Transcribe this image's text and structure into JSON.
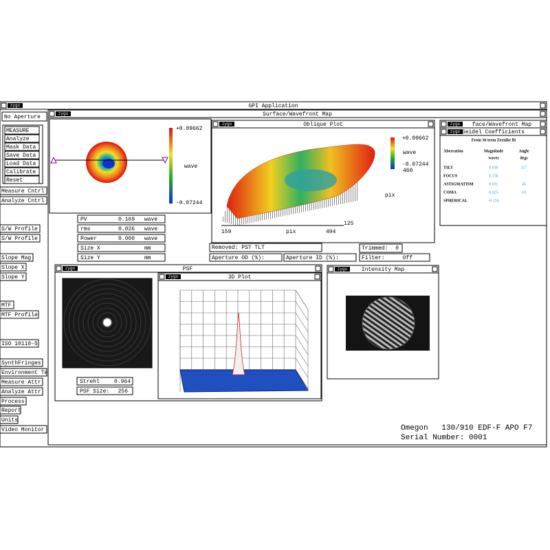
{
  "app_title": "GPI Application",
  "logo": "zygo",
  "left_panel": {
    "aperture": "No Aperture",
    "measure_group": [
      "MEASURE",
      "Analyze",
      "Mask Data",
      "Save Data",
      "Load Data",
      "Calibrate",
      "Reset"
    ],
    "buttons": [
      "Measure Cntrl",
      "Analyze Cntrl",
      "S/W Profile",
      "S/W Profile",
      "Slope Mag",
      "Slope X",
      "Slope Y",
      "MTF",
      "MTF Profile",
      "ISO 10110-5",
      "SynthFringes",
      "Environment Te",
      "Measure Attr",
      "Analyze Attr",
      "Process",
      "Report",
      "Units",
      "Video Monitor"
    ]
  },
  "surface_window": {
    "title": "Surface/Wavefront Map"
  },
  "map_panel": {
    "max": "+0.09662",
    "unit": "wave",
    "min": "-0.07244"
  },
  "oblique": {
    "title": "Oblique Plot",
    "max": "+0.09662",
    "unit": "wave",
    "min": "-0.07244",
    "x_start": "159",
    "x_label": "pix",
    "x_end": "494",
    "y_start": "125",
    "y_label": "pix",
    "y_end": "460"
  },
  "seidel": {
    "back_title": "face/Wavefront Map",
    "title": "Seidel Coefficients",
    "subtitle": "From 36 term Zernike fit",
    "headers": [
      "Aberration",
      "Magnitude",
      "Angle"
    ],
    "units": [
      "waves",
      "degs"
    ],
    "rows": [
      {
        "name": "TILT",
        "magnitude": "0.016",
        "angle": "117"
      },
      {
        "name": "FOCUS",
        "magnitude": "0.156"
      },
      {
        "name": "ASTIGMATISM",
        "magnitude": "0.031",
        "angle": "45"
      },
      {
        "name": "COMA",
        "magnitude": "0.025",
        "angle": "-61"
      },
      {
        "name": "SPHERICAL",
        "magnitude": "-0.156"
      }
    ]
  },
  "results": [
    {
      "label": "PV",
      "value": "0.169",
      "unit": "wave"
    },
    {
      "label": "rms",
      "value": "0.026",
      "unit": "wave"
    },
    {
      "label": "Power",
      "value": "0.000",
      "unit": "wave"
    },
    {
      "label": "Size X",
      "unit": "mm"
    },
    {
      "label": "Size Y",
      "unit": "mm"
    }
  ],
  "fields": {
    "removed": "Removed: PST TLT",
    "trimmed_label": "Trimmed:",
    "trimmed_value": "0",
    "aperture_od": "Aperture OD (%):",
    "aperture_id": "Aperture ID (%):",
    "filter_label": "Filter:",
    "filter_value": "Off"
  },
  "psf": {
    "title": "PSF",
    "strehl_label": "Strehl",
    "strehl_value": "0.964",
    "size_label": "PSF Size:",
    "size_value": "256"
  },
  "plot3d": {
    "title": "3D Plot"
  },
  "intensity": {
    "title": "Intensity Map"
  },
  "footer": {
    "line1": "Omegon   130/910 EDF-F APO F7",
    "line2": "Serial Number: 0001"
  }
}
